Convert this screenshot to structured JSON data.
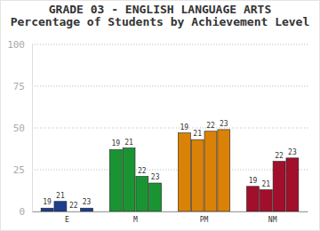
{
  "chart_data": {
    "type": "bar",
    "title": "GRADE 03 - ENGLISH LANGUAGE ARTS",
    "subtitle": "Percentage of Students by Achievement Level",
    "categories": [
      "E",
      "M",
      "PM",
      "NM"
    ],
    "series": [
      {
        "name": "19",
        "values": [
          2,
          37,
          47,
          15
        ]
      },
      {
        "name": "21",
        "values": [
          6,
          38,
          43,
          13
        ]
      },
      {
        "name": "22",
        "values": [
          0,
          21,
          48,
          30
        ]
      },
      {
        "name": "23",
        "values": [
          2,
          17,
          49,
          32
        ]
      }
    ],
    "colors": [
      "#1c3f8e",
      "#1a9432",
      "#da8208",
      "#a10f2b"
    ],
    "ylim": [
      0,
      100
    ],
    "yticks": [
      0,
      25,
      50,
      75,
      100
    ],
    "grid": true
  }
}
